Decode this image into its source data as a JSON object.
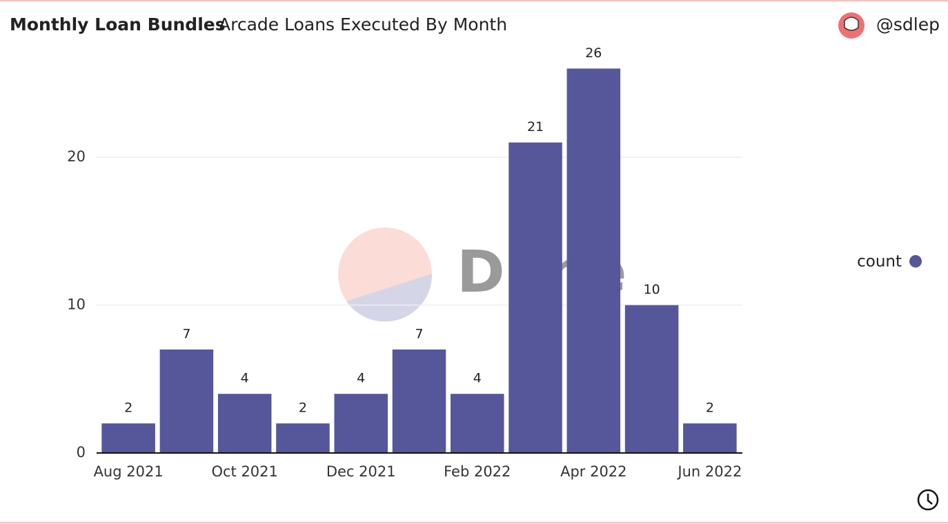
{
  "chart_data": {
    "type": "bar",
    "title": "Monthly Loan Bundles",
    "subtitle": "Arcade Loans Executed By Month",
    "author": "@sdlep",
    "watermark": "Dune",
    "categories": [
      "Aug 2021",
      null,
      "Oct 2021",
      null,
      "Dec 2021",
      null,
      "Feb 2022",
      null,
      "Apr 2022",
      null,
      "Jun 2022"
    ],
    "series": [
      {
        "name": "count",
        "color": "#55579a",
        "values": [
          2,
          7,
          4,
          2,
          4,
          7,
          4,
          21,
          26,
          10,
          2
        ]
      }
    ],
    "ylim": [
      0,
      27
    ],
    "yticks": [
      0,
      10,
      20
    ],
    "grid": true,
    "legend": "right"
  }
}
